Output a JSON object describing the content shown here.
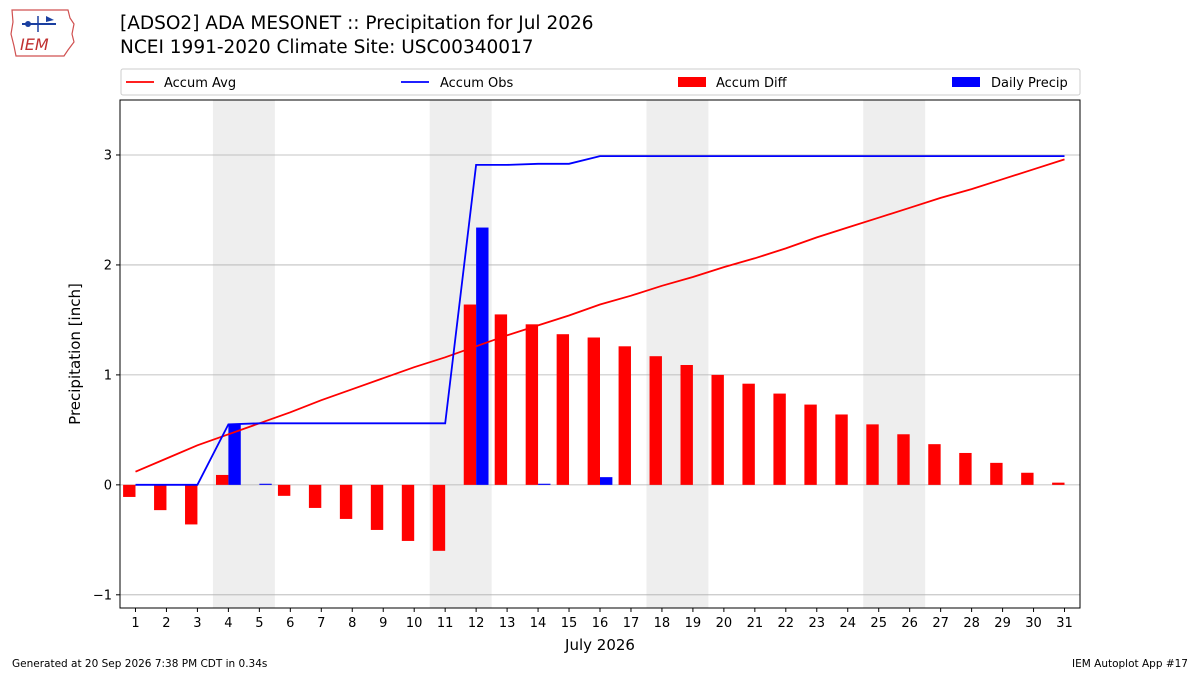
{
  "header": {
    "title_line1": "[ADSO2] ADA MESONET :: Precipitation for Jul 2026",
    "title_line2": "NCEI 1991-2020 Climate Site: USC00340017",
    "logo_text": "IEM"
  },
  "footer": {
    "generated": "Generated at 20 Sep 2026 7:38 PM CDT in 0.34s",
    "app": "IEM Autoplot App #17"
  },
  "colors": {
    "accum_avg": "#ff0000",
    "accum_obs": "#0000ff",
    "accum_diff": "#ff0000",
    "daily_precip": "#0000ff",
    "weekend_shade": "#eeeeee",
    "grid": "#b0b0b0"
  },
  "chart_data": {
    "type": "bar",
    "xlabel": "July 2026",
    "ylabel": "Precipitation [inch]",
    "xlim": [
      0.5,
      31.5
    ],
    "ylim": [
      -1.12,
      3.5
    ],
    "yticks": [
      -1,
      0,
      1,
      2,
      3
    ],
    "grid": "horizontal",
    "legend_placement": "top",
    "legend": [
      "Accum Avg",
      "Accum Obs",
      "Accum Diff",
      "Daily Precip"
    ],
    "weekend_shading": [
      [
        4,
        5
      ],
      [
        11,
        12
      ],
      [
        18,
        19
      ],
      [
        25,
        26
      ]
    ],
    "days": [
      1,
      2,
      3,
      4,
      5,
      6,
      7,
      8,
      9,
      10,
      11,
      12,
      13,
      14,
      15,
      16,
      17,
      18,
      19,
      20,
      21,
      22,
      23,
      24,
      25,
      26,
      27,
      28,
      29,
      30,
      31
    ],
    "series": [
      {
        "name": "Accum Avg",
        "kind": "line",
        "values": [
          0.12,
          0.24,
          0.36,
          0.46,
          0.56,
          0.66,
          0.77,
          0.87,
          0.97,
          1.07,
          1.16,
          1.26,
          1.36,
          1.45,
          1.54,
          1.64,
          1.72,
          1.81,
          1.89,
          1.98,
          2.06,
          2.15,
          2.25,
          2.34,
          2.43,
          2.52,
          2.61,
          2.69,
          2.78,
          2.87,
          2.96
        ]
      },
      {
        "name": "Accum Obs",
        "kind": "line",
        "values": [
          0.0,
          0.0,
          0.0,
          0.55,
          0.56,
          0.56,
          0.56,
          0.56,
          0.56,
          0.56,
          0.56,
          2.91,
          2.91,
          2.92,
          2.92,
          2.99,
          2.99,
          2.99,
          2.99,
          2.99,
          2.99,
          2.99,
          2.99,
          2.99,
          2.99,
          2.99,
          2.99,
          2.99,
          2.99,
          2.99,
          2.99
        ]
      },
      {
        "name": "Accum Diff",
        "kind": "bar",
        "values": [
          -0.11,
          -0.23,
          -0.36,
          0.09,
          0.0,
          -0.1,
          -0.21,
          -0.31,
          -0.41,
          -0.51,
          -0.6,
          1.64,
          1.55,
          1.46,
          1.37,
          1.34,
          1.26,
          1.17,
          1.09,
          1.0,
          0.92,
          0.83,
          0.73,
          0.64,
          0.55,
          0.46,
          0.37,
          0.29,
          0.2,
          0.11,
          0.02
        ]
      },
      {
        "name": "Daily Precip",
        "kind": "bar",
        "values": [
          0,
          0,
          0,
          0.55,
          0.01,
          0,
          0,
          0,
          0,
          0,
          0,
          2.34,
          0,
          0.01,
          0,
          0.07,
          0,
          0,
          0,
          0,
          0,
          0,
          0,
          0,
          0,
          0,
          0,
          0,
          0,
          0,
          0
        ]
      }
    ]
  }
}
